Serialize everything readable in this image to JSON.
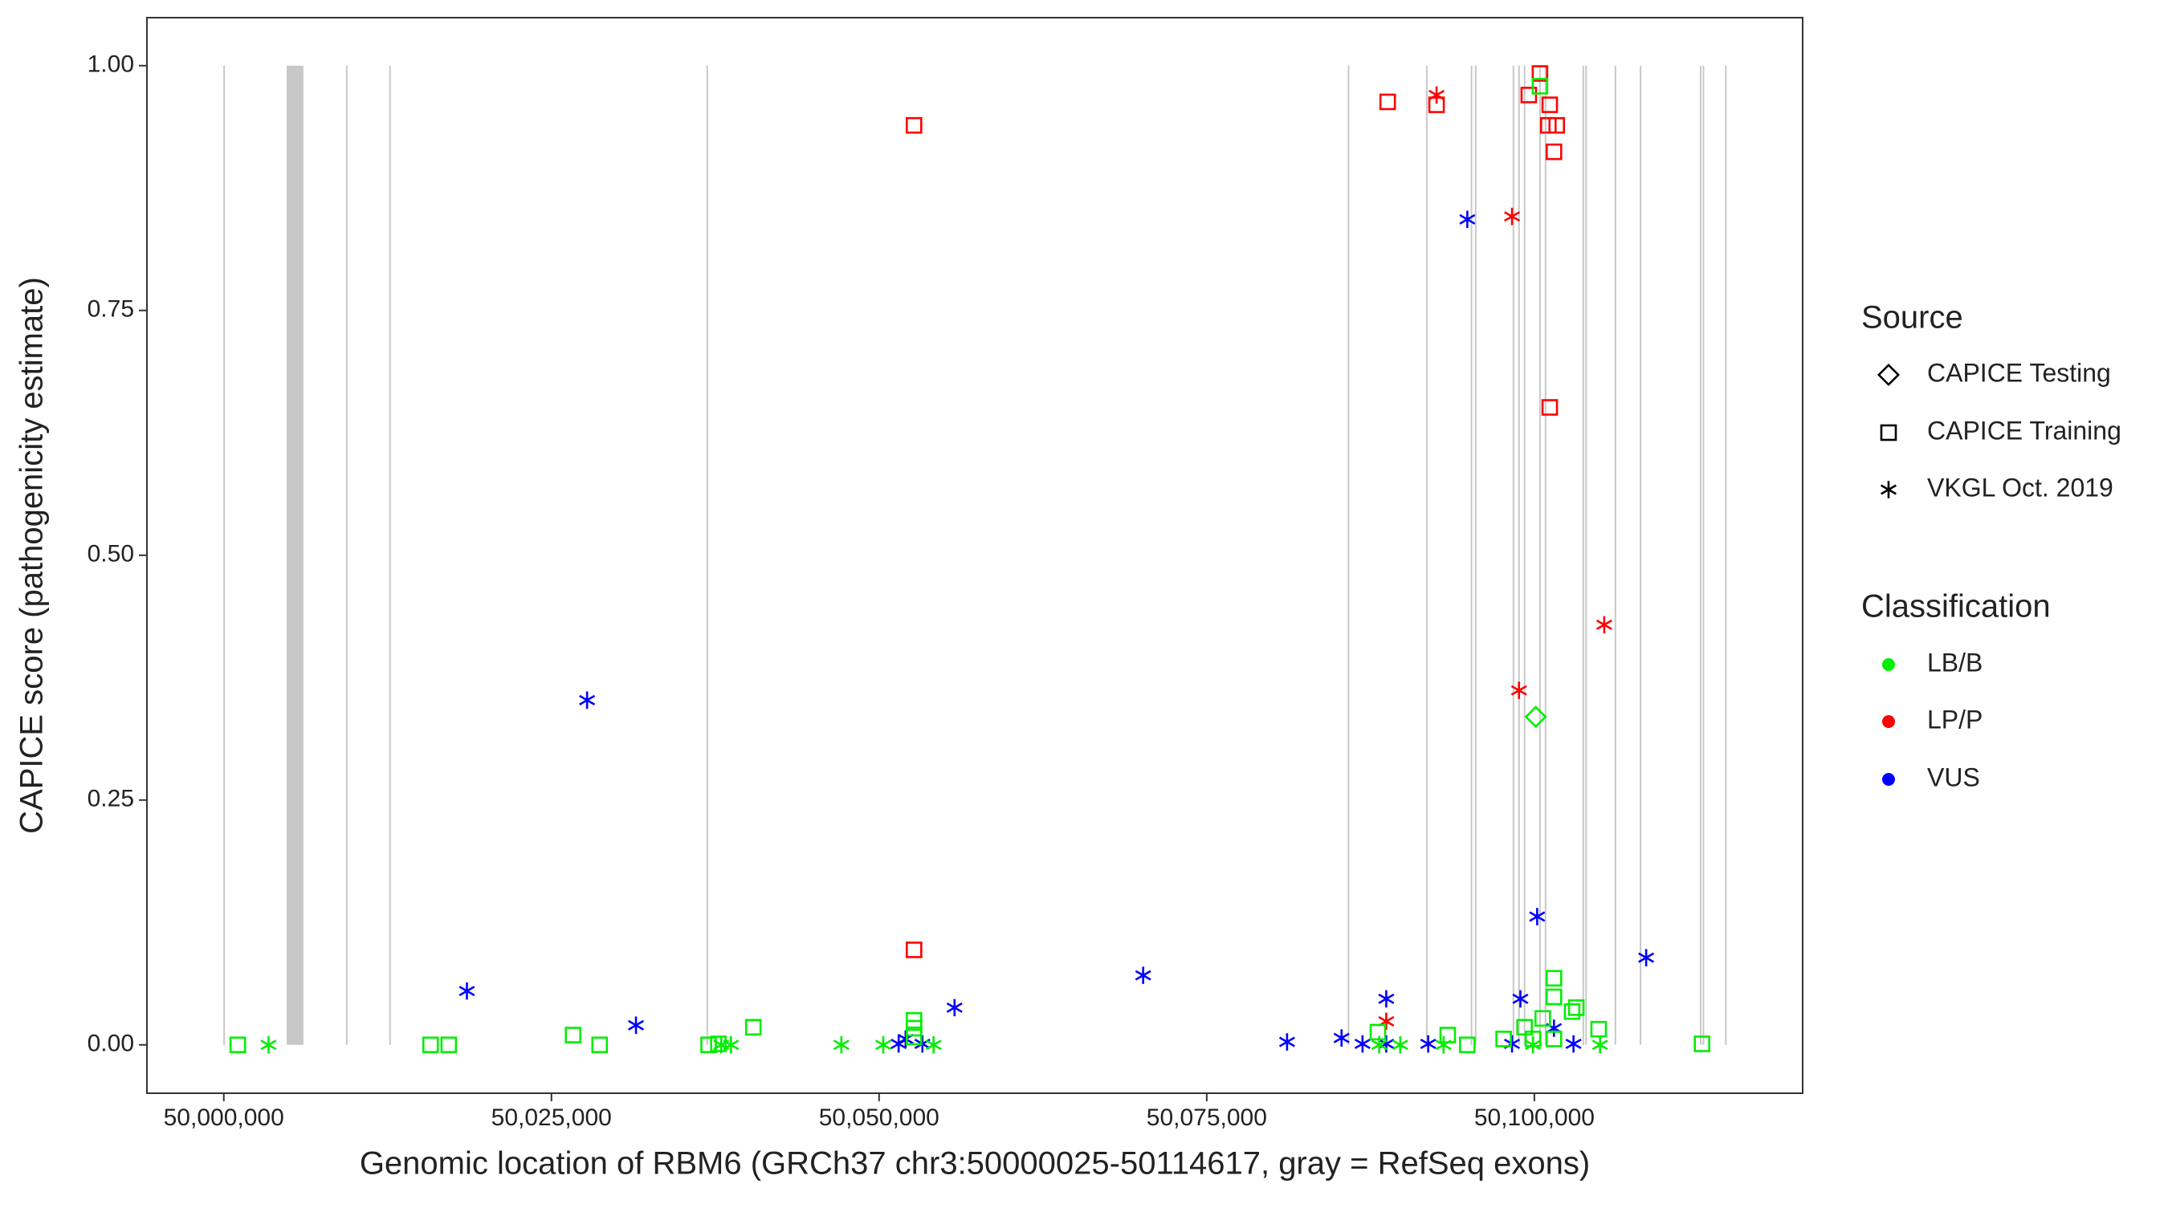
{
  "chart_data": {
    "type": "scatter",
    "x_label": "Genomic location of RBM6 (GRCh37 chr3:50000025-50114617, gray = RefSeq exons)",
    "y_label": "CAPICE score (pathogenicity estimate)",
    "xlim": [
      49994136,
      50120470
    ],
    "ylim": [
      -0.0494,
      1.049
    ],
    "xticks": [
      {
        "value": 50000000,
        "label": "50,000,000"
      },
      {
        "value": 50025000,
        "label": "50,025,000"
      },
      {
        "value": 50050000,
        "label": "50,050,000"
      },
      {
        "value": 50075000,
        "label": "50,075,000"
      },
      {
        "value": 50100000,
        "label": "50,100,000"
      }
    ],
    "yticks": [
      {
        "value": 0,
        "label": "0.00"
      },
      {
        "value": 0.25,
        "label": "0.25"
      },
      {
        "value": 0.5,
        "label": "0.50"
      },
      {
        "value": 0.75,
        "label": "0.75"
      },
      {
        "value": 1,
        "label": "1.00"
      }
    ],
    "grid": false,
    "exon_color": "#c8c8c8",
    "exons": [
      [
        50000025,
        50000025
      ],
      [
        50004797,
        50006077
      ],
      [
        50009382,
        50009382
      ],
      [
        50012687,
        50012687
      ],
      [
        50036887,
        50036887
      ],
      [
        50085821,
        50085821
      ],
      [
        50091791,
        50091791
      ],
      [
        50095203,
        50095203
      ],
      [
        50095522,
        50095522
      ],
      [
        50098401,
        50098401
      ],
      [
        50098827,
        50098827
      ],
      [
        50099254,
        50099254
      ],
      [
        50100426,
        50100426
      ],
      [
        50100853,
        50100853
      ],
      [
        50103731,
        50103731
      ],
      [
        50103945,
        50103945
      ],
      [
        50106183,
        50106183
      ],
      [
        50108102,
        50108102
      ],
      [
        50112687,
        50112687
      ],
      [
        50112900,
        50112900
      ],
      [
        50114606,
        50114606
      ]
    ],
    "shape_legend": {
      "title": "Source",
      "entries": [
        "CAPICE Testing",
        "CAPICE Training",
        "VKGL Oct. 2019"
      ],
      "shapes": [
        "diamond",
        "square",
        "asterisk"
      ]
    },
    "color_legend": {
      "title": "Classification",
      "entries": [
        "LB/B",
        "LP/P",
        "VUS"
      ],
      "colors": [
        "#00ee00",
        "#ff0000",
        "#0000ff"
      ]
    },
    "series": [
      {
        "source": "CAPICE Training",
        "classification": "LP/P",
        "x": [
          50052665,
          50052665,
          50088806,
          50092537,
          50099574,
          50100426,
          50101173,
          50101066,
          50101706,
          50101493,
          50101173
        ],
        "y": [
          0.939,
          0.097,
          0.963,
          0.96,
          0.97,
          0.992,
          0.96,
          0.939,
          0.939,
          0.912,
          0.651
        ]
      },
      {
        "source": "VKGL Oct. 2019",
        "classification": "LP/P",
        "x": [
          50092537,
          50098294,
          50105330,
          50098827,
          50088699
        ],
        "y": [
          0.97,
          0.846,
          0.429,
          0.362,
          0.024
        ]
      },
      {
        "source": "VKGL Oct. 2019",
        "classification": "VUS",
        "x": [
          50027719,
          50018550,
          50031450,
          50070149,
          50055757,
          50051493,
          50052026,
          50053305,
          50081130,
          50085288,
          50086887,
          50088699,
          50088699,
          50091898,
          50094883,
          50100213,
          50108529,
          50098934,
          50098294,
          50101493,
          50102985
        ],
        "y": [
          0.352,
          0.055,
          0.02,
          0.071,
          0.038,
          0.001,
          0.006,
          0.001,
          0.003,
          0.007,
          0.001,
          0.047,
          0.001,
          0.001,
          0.843,
          0.131,
          0.089,
          0.047,
          0.001,
          0.017,
          0.001
        ]
      },
      {
        "source": "CAPICE Testing",
        "classification": "LB/B",
        "x": [
          50100107
        ],
        "y": [
          0.335
        ]
      },
      {
        "source": "CAPICE Training",
        "classification": "LB/B",
        "x": [
          50001066,
          50015778,
          50017164,
          50026652,
          50028678,
          50036994,
          50037740,
          50040405,
          50052665,
          50052665,
          50052665,
          50088060,
          50093390,
          50094883,
          50097655,
          50099254,
          50100640,
          50101493,
          50101493,
          50102878,
          50103198,
          50104904,
          50112793,
          50100426,
          50099893,
          50101493
        ],
        "y": [
          0,
          0,
          0,
          0.01,
          0,
          0,
          0.001,
          0.018,
          0.025,
          0.017,
          0.008,
          0.013,
          0.01,
          0,
          0.006,
          0.018,
          0.027,
          0.068,
          0.049,
          0.034,
          0.038,
          0.016,
          0.001,
          0.979,
          0.006,
          0.006
        ]
      },
      {
        "source": "VKGL Oct. 2019",
        "classification": "LB/B",
        "x": [
          50003412,
          50037953,
          50038699,
          50047122,
          50050320,
          50054158,
          50088166,
          50089765,
          50093070,
          50099893,
          50105011
        ],
        "y": [
          0,
          0,
          0,
          0,
          0,
          0,
          0,
          0,
          0,
          0,
          0
        ]
      }
    ]
  }
}
